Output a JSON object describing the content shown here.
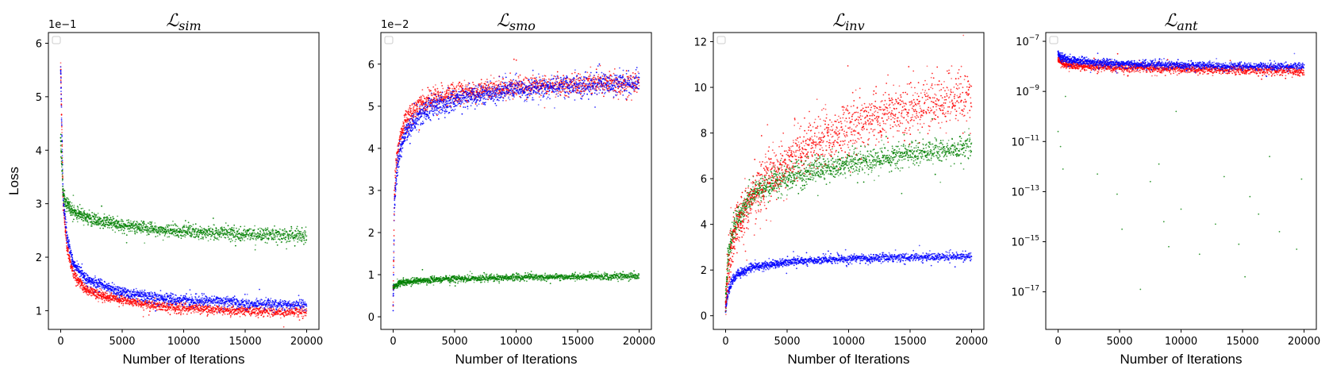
{
  "chart_data": [
    {
      "type": "scatter",
      "title": "ℒ",
      "title_sub": "sim",
      "xlabel": "Number of Iterations",
      "ylabel": "Loss",
      "offset_text": "1e−1",
      "xlim": [
        -1000,
        21000
      ],
      "ylim": [
        0.65,
        6.2
      ],
      "yscale": "linear",
      "xticks": [
        0,
        5000,
        10000,
        15000,
        20000
      ],
      "xtick_labels": [
        "0",
        "5000",
        "10000",
        "15000",
        "20000"
      ],
      "yticks": [
        1,
        2,
        3,
        4,
        5,
        6
      ],
      "ytick_labels": [
        "1",
        "2",
        "3",
        "4",
        "5",
        "6"
      ],
      "legend": "top-left (empty)",
      "series": [
        {
          "color": "#ff0000",
          "x": [
            0,
            200,
            500,
            1000,
            2000,
            3000,
            5000,
            7500,
            10000,
            12500,
            15000,
            17500,
            20000
          ],
          "y": [
            5.6,
            3.0,
            2.2,
            1.7,
            1.4,
            1.3,
            1.2,
            1.1,
            1.05,
            1.02,
            1.0,
            0.98,
            0.97
          ],
          "spread": 0.06
        },
        {
          "color": "#0000ff",
          "x": [
            0,
            200,
            500,
            1000,
            2000,
            3000,
            5000,
            7500,
            10000,
            12500,
            15000,
            17500,
            20000
          ],
          "y": [
            5.5,
            3.1,
            2.4,
            1.9,
            1.6,
            1.5,
            1.35,
            1.25,
            1.2,
            1.17,
            1.14,
            1.12,
            1.1
          ],
          "spread": 0.06
        },
        {
          "color": "#008000",
          "x": [
            0,
            200,
            500,
            1000,
            2000,
            3000,
            5000,
            7500,
            10000,
            12500,
            15000,
            17500,
            20000
          ],
          "y": [
            4.2,
            3.2,
            3.0,
            2.85,
            2.75,
            2.68,
            2.6,
            2.52,
            2.47,
            2.45,
            2.43,
            2.42,
            2.4
          ],
          "spread": 0.08
        }
      ]
    },
    {
      "type": "scatter",
      "title": "ℒ",
      "title_sub": "smo",
      "xlabel": "Number of Iterations",
      "ylabel": "",
      "offset_text": "1e−2",
      "xlim": [
        -1000,
        21000
      ],
      "ylim": [
        -0.3,
        6.75
      ],
      "yscale": "linear",
      "xticks": [
        0,
        5000,
        10000,
        15000,
        20000
      ],
      "xtick_labels": [
        "0",
        "5000",
        "10000",
        "15000",
        "20000"
      ],
      "yticks": [
        0,
        1,
        2,
        3,
        4,
        5,
        6
      ],
      "ytick_labels": [
        "0",
        "1",
        "2",
        "3",
        "4",
        "5",
        "6"
      ],
      "legend": "top-left (empty)",
      "series": [
        {
          "color": "#008000",
          "x": [
            0,
            500,
            1000,
            2500,
            5000,
            10000,
            15000,
            20000
          ],
          "y": [
            0.7,
            0.8,
            0.83,
            0.86,
            0.9,
            0.93,
            0.95,
            0.96
          ],
          "spread": 0.05
        },
        {
          "color": "#ff0000",
          "x": [
            0,
            100,
            300,
            600,
            1000,
            2000,
            3000,
            5000,
            7500,
            10000,
            15000,
            20000
          ],
          "y": [
            0.2,
            2.9,
            3.8,
            4.3,
            4.65,
            5.0,
            5.15,
            5.3,
            5.4,
            5.45,
            5.52,
            5.55
          ],
          "spread": 0.16
        },
        {
          "color": "#0000ff",
          "x": [
            0,
            100,
            300,
            600,
            1000,
            2000,
            3000,
            5000,
            7500,
            10000,
            15000,
            20000
          ],
          "y": [
            0.2,
            2.6,
            3.5,
            4.0,
            4.35,
            4.75,
            4.95,
            5.15,
            5.3,
            5.4,
            5.5,
            5.55
          ],
          "spread": 0.16
        }
      ]
    },
    {
      "type": "scatter",
      "title": "ℒ",
      "title_sub": "inv",
      "xlabel": "Number of Iterations",
      "ylabel": "",
      "offset_text": "",
      "xlim": [
        -1000,
        21000
      ],
      "ylim": [
        -0.6,
        12.4
      ],
      "yscale": "linear",
      "xticks": [
        0,
        5000,
        10000,
        15000,
        20000
      ],
      "xtick_labels": [
        "0",
        "5000",
        "10000",
        "15000",
        "20000"
      ],
      "yticks": [
        0,
        2,
        4,
        6,
        8,
        10,
        12
      ],
      "ytick_labels": [
        "0",
        "2",
        "4",
        "6",
        "8",
        "10",
        "12"
      ],
      "legend": "top-left (empty)",
      "series": [
        {
          "color": "#0000ff",
          "x": [
            0,
            200,
            500,
            1000,
            2000,
            5000,
            10000,
            15000,
            20000
          ],
          "y": [
            0.3,
            1.0,
            1.5,
            1.8,
            2.1,
            2.35,
            2.5,
            2.55,
            2.6
          ],
          "spread": 0.12
        },
        {
          "color": "#008000",
          "x": [
            0,
            200,
            500,
            1000,
            2000,
            3000,
            5000,
            7500,
            10000,
            12500,
            15000,
            17500,
            20000
          ],
          "y": [
            0.5,
            2.5,
            3.5,
            4.3,
            5.2,
            5.6,
            6.0,
            6.4,
            6.7,
            6.9,
            7.1,
            7.25,
            7.4
          ],
          "spread": 0.35
        },
        {
          "color": "#ff0000",
          "x": [
            0,
            200,
            500,
            1000,
            2000,
            3000,
            5000,
            7500,
            10000,
            12500,
            15000,
            17500,
            20000
          ],
          "y": [
            0.3,
            2.0,
            3.0,
            4.0,
            5.0,
            5.8,
            6.8,
            7.7,
            8.3,
            8.8,
            9.1,
            9.3,
            9.5
          ],
          "spread": 0.75
        }
      ]
    },
    {
      "type": "scatter",
      "title": "ℒ",
      "title_sub": "ant",
      "xlabel": "Number of Iterations",
      "ylabel": "",
      "offset_text": "",
      "xlim": [
        -1000,
        21000
      ],
      "ylim": [
        -18.5,
        -6.65
      ],
      "yscale": "log",
      "xticks": [
        0,
        5000,
        10000,
        15000,
        20000
      ],
      "xtick_labels": [
        "0",
        "5000",
        "10000",
        "15000",
        "20000"
      ],
      "yticks": [
        -7,
        -9,
        -11,
        -13,
        -15,
        -17
      ],
      "ytick_labels": [
        "10",
        "10",
        "10",
        "10",
        "10",
        "10"
      ],
      "ytick_exponents": [
        "−7",
        "−9",
        "−11",
        "−13",
        "−15",
        "−17"
      ],
      "legend": "top-left (empty)",
      "series": [
        {
          "color": "#ff0000",
          "x": [
            0,
            300,
            1000,
            3000,
            5000,
            10000,
            15000,
            20000
          ],
          "y_log10": [
            -7.7,
            -7.85,
            -7.95,
            -8.0,
            -8.05,
            -8.1,
            -8.15,
            -8.2
          ],
          "spread": 0.12
        },
        {
          "color": "#0000ff",
          "x": [
            0,
            300,
            1000,
            3000,
            5000,
            10000,
            15000,
            20000
          ],
          "y_log10": [
            -7.5,
            -7.65,
            -7.75,
            -7.85,
            -7.9,
            -7.95,
            -8.0,
            -8.0
          ],
          "spread": 0.1
        },
        {
          "color": "#008000",
          "note_points": true,
          "x": [
            0,
            200,
            400,
            600,
            3200,
            4800,
            5200,
            6700,
            7500,
            8200,
            8600,
            9000,
            9600,
            10000,
            11500,
            12800,
            13500,
            14700,
            15200,
            15600,
            16300,
            17200,
            18000,
            19400,
            19800
          ],
          "y_log10": [
            -10.6,
            -11.2,
            -12.1,
            -9.2,
            -12.3,
            -13.1,
            -14.5,
            -16.9,
            -12.6,
            -11.9,
            -14.2,
            -15.2,
            -9.8,
            -13.7,
            -15.5,
            -14.3,
            -12.4,
            -15.1,
            -16.4,
            -13.2,
            -13.9,
            -11.6,
            -14.6,
            -15.3,
            -12.5
          ]
        }
      ]
    }
  ]
}
